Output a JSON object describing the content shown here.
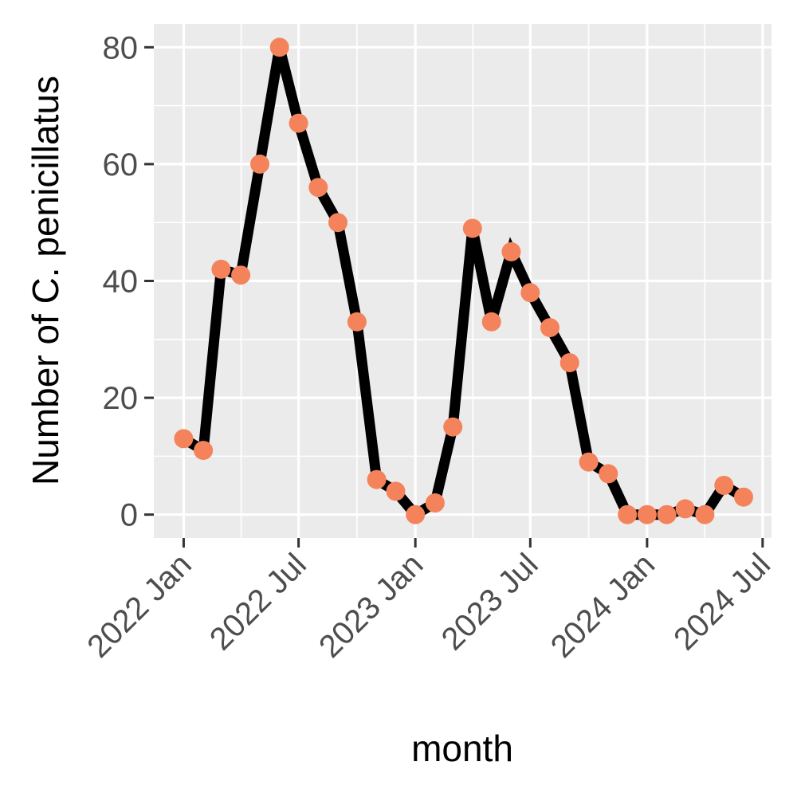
{
  "chart_data": {
    "type": "line",
    "title": "",
    "xlabel": "month",
    "ylabel": "Number of C. penicillatus",
    "x_tick_labels": [
      "2022 Jan",
      "2022 Jul",
      "2023 Jan",
      "2023 Jul",
      "2024 Jan",
      "2024 Jul"
    ],
    "x_ticks": [
      "2022-01-01",
      "2022-07-01",
      "2023-01-01",
      "2023-07-01",
      "2024-01-01",
      "2024-07-01"
    ],
    "y_ticks": [
      0,
      20,
      40,
      60,
      80
    ],
    "y_tick_labels": [
      "0",
      "20",
      "40",
      "60",
      "80"
    ],
    "xlim": [
      "2021-11-15",
      "2024-07-15"
    ],
    "ylim": [
      -4,
      84
    ],
    "grid": true,
    "legend": "none",
    "colors": {
      "panel_background": "#ebebeb",
      "grid": "#ffffff",
      "line": "#000000",
      "point": "#f4835b",
      "tick_text": "#4d4d4d"
    },
    "series": [
      {
        "x": [
          "2022-01-01",
          "2022-02-01",
          "2022-03-01",
          "2022-04-01",
          "2022-05-01",
          "2022-06-01",
          "2022-07-01",
          "2022-08-01",
          "2022-09-01",
          "2022-10-01",
          "2022-11-01",
          "2022-12-01",
          "2023-01-01",
          "2023-02-01",
          "2023-03-01",
          "2023-04-01",
          "2023-05-01",
          "2023-06-01",
          "2023-07-01",
          "2023-08-01",
          "2023-09-01",
          "2023-10-01",
          "2023-11-01",
          "2023-12-01",
          "2024-01-01",
          "2024-02-01",
          "2024-03-01",
          "2024-04-01",
          "2024-05-01",
          "2024-06-01"
        ],
        "values": [
          13,
          11,
          42,
          41,
          60,
          80,
          67,
          56,
          50,
          33,
          6,
          4,
          0,
          2,
          15,
          49,
          33,
          45,
          38,
          32,
          26,
          9,
          7,
          0,
          0,
          0,
          1,
          0,
          5,
          3
        ]
      }
    ]
  }
}
